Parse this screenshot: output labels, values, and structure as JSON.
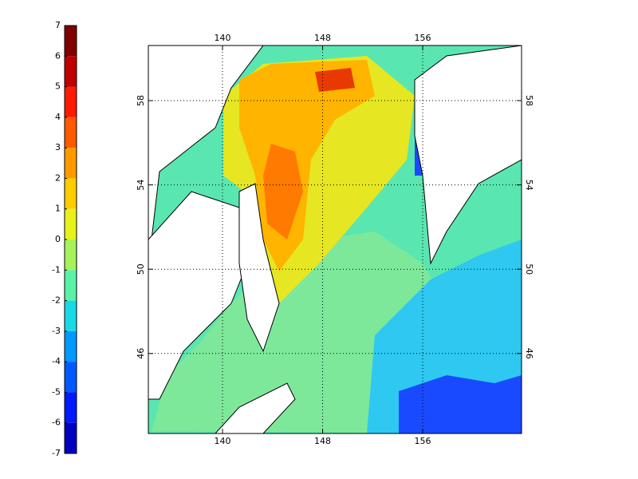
{
  "colorbar": {
    "ticks": [
      7,
      6,
      5,
      4,
      3,
      2,
      1,
      0,
      -1,
      -2,
      -3,
      -4,
      -5,
      -6,
      -7
    ],
    "colors": [
      "#7f0000",
      "#bf0000",
      "#ff1a00",
      "#ff5a00",
      "#ff9900",
      "#ffcc00",
      "#e6f21a",
      "#a6f25a",
      "#5af2a6",
      "#1ad9e6",
      "#0099ff",
      "#0059ff",
      "#0019ff",
      "#0000bf"
    ]
  },
  "map": {
    "x_ticks": [
      140,
      148,
      156
    ],
    "y_ticks": [
      46,
      50,
      54,
      58
    ],
    "grid": true
  }
}
